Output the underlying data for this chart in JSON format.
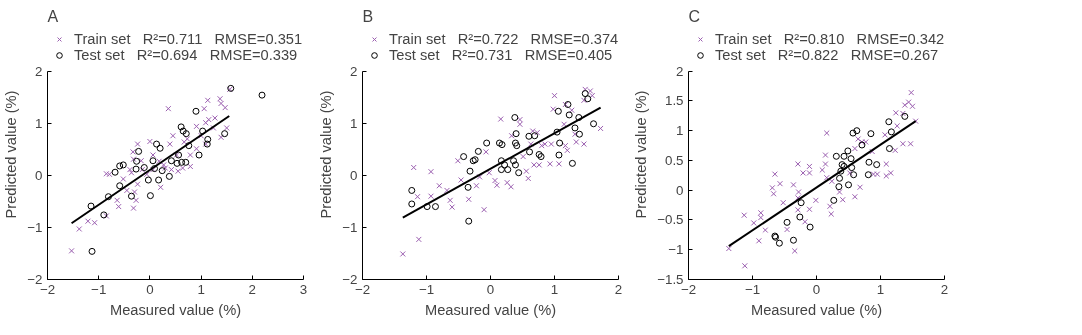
{
  "chart_data": [
    {
      "type": "scatter",
      "title": "A",
      "xlabel": "Measured value (%)",
      "ylabel": "Predicted value (%)",
      "xlim": [
        -2,
        3
      ],
      "ylim": [
        -2,
        2
      ],
      "xticks": [
        -2,
        -1,
        0,
        1,
        2,
        3
      ],
      "yticks": [
        -2,
        -1,
        0,
        1,
        2
      ],
      "grid": false,
      "legend": "top",
      "series": [
        {
          "name": "Train set   R²=0.711   RMSE=0.351",
          "color": "#9b5fb0",
          "marker": "cross",
          "x": [
            1.56,
            1.37,
            0.36,
            1.13,
            1.47,
            1.06,
            0.91,
            1.24,
            1.15,
            1.5,
            1.39,
            0.0,
            -0.24,
            0.39,
            0.45,
            0.67,
            0.91,
            0.79,
            0.64,
            0.79,
            0.3,
            0.42,
            -0.33,
            -0.32,
            -0.39,
            -0.17,
            -0.85,
            -0.79,
            -0.36,
            -0.52,
            -0.45,
            -0.3,
            -0.27,
            -0.32,
            -0.64,
            -0.61,
            0.21,
            -0.06,
            -0.15,
            0.06,
            0.27,
            0.52,
            1.0,
            1.27,
            1.09,
            -1.21,
            -1.08,
            -1.38,
            -0.85,
            -1.53,
            -0.24,
            0.73,
            1.09,
            1.39,
            0.06,
            0.55,
            0.18
          ],
          "values": [
            1.65,
            1.47,
            1.28,
            1.44,
            1.3,
            1.28,
            0.94,
            0.91,
            1.07,
            0.91,
            0.73,
            0.65,
            0.6,
            0.6,
            0.76,
            0.64,
            0.51,
            0.39,
            0.14,
            0.17,
            0.14,
            0.11,
            0.45,
            0.31,
            0.11,
            0.28,
            0.03,
            0.02,
            0.05,
            -0.07,
            -0.29,
            -0.32,
            -0.48,
            -0.63,
            -0.48,
            -0.6,
            -0.23,
            0.02,
            0.11,
            0.11,
            0.2,
            0.39,
            0.76,
            1.1,
            1.01,
            -0.88,
            -0.91,
            -1.03,
            -0.78,
            -1.45,
            -0.17,
            0.7,
            0.6,
            1.38,
            0.39,
            0.08,
            0.27
          ]
        },
        {
          "name": "Test set   R²=0.694   RMSE=0.339",
          "color": "#000000",
          "marker": "circle",
          "x": [
            1.58,
            2.19,
            0.9,
            0.61,
            0.65,
            0.71,
            1.03,
            1.46,
            1.13,
            1.12,
            -0.22,
            0.13,
            0.2,
            0.96,
            -0.59,
            -0.52,
            -0.68,
            -0.26,
            -0.27,
            -0.11,
            0.06,
            0.09,
            -0.03,
            0.17,
            0.38,
            0.42,
            0.56,
            0.62,
            0.7,
            0.53,
            0.24,
            -0.59,
            -0.81,
            -0.36,
            0.01,
            -1.15,
            -0.9,
            -1.13,
            0.76
          ],
          "values": [
            1.67,
            1.54,
            1.23,
            0.93,
            0.85,
            0.8,
            0.85,
            0.8,
            0.69,
            0.6,
            0.46,
            0.6,
            0.52,
            0.39,
            0.18,
            0.2,
            0.06,
            0.27,
            0.12,
            0.15,
            0.28,
            0.13,
            -0.09,
            -0.09,
            -0.02,
            0.28,
            0.39,
            0.25,
            0.25,
            0.23,
            0.09,
            -0.2,
            -0.41,
            -0.4,
            -0.39,
            -0.59,
            -0.76,
            -1.46,
            0.57
          ]
        },
        {
          "type": "line",
          "color": "#000000",
          "x": [
            -1.53,
            1.55
          ],
          "values": [
            -0.92,
            1.14
          ]
        }
      ]
    },
    {
      "type": "scatter",
      "title": "B",
      "xlabel": "Measured value (%)",
      "ylabel": "Predicted value (%)",
      "xlim": [
        -2,
        2
      ],
      "ylim": [
        -2,
        2
      ],
      "xticks": [
        -2,
        -1,
        0,
        1,
        2
      ],
      "yticks": [
        -2,
        -1,
        0,
        1,
        2
      ],
      "grid": false,
      "legend": "top",
      "series": [
        {
          "name": "Train set   R²=0.722   RMSE=0.374",
          "color": "#9b5fb0",
          "marker": "cross",
          "x": [
            1.48,
            1.56,
            1.0,
            1.17,
            1.27,
            0.98,
            1.46,
            1.59,
            1.72,
            0.16,
            0.46,
            0.46,
            0.33,
            0.66,
            0.73,
            0.85,
            0.95,
            1.17,
            1.2,
            1.34,
            1.46,
            0.93,
            1.07,
            0.68,
            0.56,
            0.59,
            0.76,
            -0.51,
            -0.07,
            -0.02,
            -0.17,
            0.07,
            0.1,
            0.26,
            0.32,
            -0.22,
            -0.46,
            -0.68,
            -0.8,
            -0.93,
            -1.2,
            -1.14,
            -0.93,
            -0.63,
            -0.6,
            -0.1,
            -1.12,
            -1.37,
            -0.34,
            0.51,
            0.8,
            0.63,
            1.32,
            1.15
          ],
          "values": [
            1.65,
            1.62,
            1.53,
            1.36,
            1.25,
            1.27,
            1.44,
            1.53,
            0.9,
            1.08,
            1.07,
            0.98,
            0.76,
            0.85,
            0.82,
            0.6,
            0.6,
            0.57,
            0.48,
            0.64,
            0.6,
            0.22,
            0.22,
            0.2,
            0.08,
            -0.06,
            0.2,
            0.28,
            0.45,
            0.05,
            -0.03,
            -0.1,
            -0.19,
            -0.14,
            -0.22,
            -0.2,
            -0.09,
            -0.29,
            -0.2,
            0.07,
            0.15,
            -0.41,
            -0.4,
            -0.48,
            -0.61,
            -0.66,
            -1.23,
            -1.51,
            -0.46,
            0.36,
            0.57,
            0.6,
            0.79,
            0.98
          ]
        },
        {
          "name": "Test set   R²=0.731   RMSE=0.405",
          "color": "#000000",
          "marker": "circle",
          "x": [
            1.48,
            1.52,
            1.21,
            1.06,
            1.23,
            0.38,
            1.38,
            1.61,
            1.32,
            1.39,
            1.04,
            0.4,
            -0.06,
            0.14,
            0.18,
            0.39,
            0.41,
            -0.19,
            -0.42,
            -0.27,
            -0.24,
            -0.32,
            0.17,
            0.22,
            0.36,
            0.39,
            0.44,
            0.61,
            0.6,
            0.69,
            0.76,
            0.79,
            1.07,
            1.08,
            1.28,
            -1.23,
            -1.23,
            -0.99,
            -0.86,
            -0.35,
            -0.34,
            0.27,
            0.17
          ],
          "values": [
            1.57,
            1.47,
            1.36,
            1.23,
            1.16,
            1.11,
            1.11,
            0.99,
            0.91,
            0.79,
            0.83,
            0.8,
            0.62,
            0.62,
            0.59,
            0.62,
            0.57,
            0.46,
            0.36,
            0.28,
            0.3,
            0.08,
            0.28,
            0.2,
            0.28,
            0.2,
            0.05,
            0.45,
            0.75,
            0.76,
            0.4,
            0.36,
            0.39,
            0.62,
            0.23,
            -0.29,
            -0.55,
            -0.6,
            -0.6,
            -0.23,
            -0.88,
            0.11,
            0.11
          ]
        },
        {
          "type": "line",
          "color": "#000000",
          "x": [
            -1.37,
            1.72
          ],
          "values": [
            -0.81,
            1.3
          ]
        }
      ]
    },
    {
      "type": "scatter",
      "title": "C",
      "xlabel": "Measured value (%)",
      "ylabel": "Predicted value (%)",
      "xlim": [
        -2,
        2
      ],
      "ylim": [
        -1.5,
        2
      ],
      "xticks": [
        -2,
        -1,
        0,
        1,
        2
      ],
      "yticks": [
        -1.5,
        -1,
        -0.5,
        0,
        0.5,
        1,
        1.5,
        2
      ],
      "grid": false,
      "legend": "top",
      "series": [
        {
          "name": "Train set   R²=0.810   RMSE=0.342",
          "color": "#9b5fb0",
          "marker": "cross",
          "x": [
            1.48,
            1.44,
            1.5,
            1.38,
            1.24,
            1.35,
            1.55,
            1.26,
            1.07,
            1.35,
            1.47,
            1.23,
            1.09,
            0.89,
            0.95,
            1.09,
            1.16,
            0.65,
            0.71,
            0.6,
            0.16,
            0.14,
            0.14,
            -0.11,
            -0.11,
            -0.29,
            -0.21,
            0.09,
            0.16,
            0.24,
            0.36,
            0.41,
            0.6,
            0.68,
            0.52,
            -0.65,
            -0.57,
            -0.69,
            -0.67,
            -0.36,
            -0.28,
            -0.29,
            -0.52,
            -0.29,
            -0.11,
            -0.01,
            0.21,
            0.23,
            -0.87,
            -0.87,
            -1.13,
            -0.98,
            -0.8,
            -0.9,
            -0.46,
            -0.18,
            -0.34,
            -1.37,
            -1.12,
            0.77,
            0.87
          ],
          "values": [
            1.64,
            1.48,
            1.41,
            1.43,
            1.3,
            1.29,
            1.16,
            1.08,
            0.93,
            0.78,
            0.78,
            0.67,
            0.44,
            0.27,
            0.27,
            0.24,
            0.29,
            0.86,
            0.81,
            0.7,
            0.96,
            0.59,
            0.44,
            0.4,
            0.29,
            0.44,
            0.29,
            0.34,
            0.21,
            0.15,
            -0.03,
            -0.16,
            -0.11,
            0.05,
            0.29,
            0.27,
            0.11,
            0.04,
            -0.06,
            0.09,
            -0.03,
            -0.13,
            -0.21,
            -0.33,
            -0.32,
            -0.17,
            -0.27,
            -0.4,
            -0.38,
            -0.46,
            -0.42,
            -0.55,
            -0.67,
            -0.85,
            -0.66,
            -0.53,
            -1.02,
            -0.98,
            -1.27,
            0.81,
            0.65
          ]
        },
        {
          "name": "Test set   R²=0.822   RMSE=0.267",
          "color": "#000000",
          "marker": "circle",
          "x": [
            1.38,
            1.13,
            1.17,
            0.57,
            0.63,
            0.85,
            0.71,
            1.14,
            0.31,
            0.43,
            0.49,
            0.54,
            0.4,
            0.43,
            0.55,
            0.58,
            0.82,
            0.81,
            0.94,
            0.38,
            0.36,
            0.35,
            0.5,
            0.27,
            -0.24,
            -0.26,
            -0.46,
            -0.1,
            -0.65,
            -0.64,
            -0.58,
            -0.36
          ],
          "values": [
            1.24,
            1.15,
            0.98,
            0.96,
            1.0,
            0.95,
            0.76,
            0.7,
            0.57,
            0.57,
            0.66,
            0.53,
            0.43,
            0.4,
            0.38,
            0.26,
            0.47,
            0.26,
            0.43,
            0.32,
            0.2,
            0.06,
            0.09,
            -0.17,
            -0.21,
            -0.45,
            -0.54,
            -0.62,
            -0.77,
            -0.79,
            -0.89,
            -0.84
          ]
        },
        {
          "type": "line",
          "color": "#000000",
          "x": [
            -1.37,
            1.55
          ],
          "values": [
            -0.94,
            1.16
          ]
        }
      ]
    }
  ]
}
